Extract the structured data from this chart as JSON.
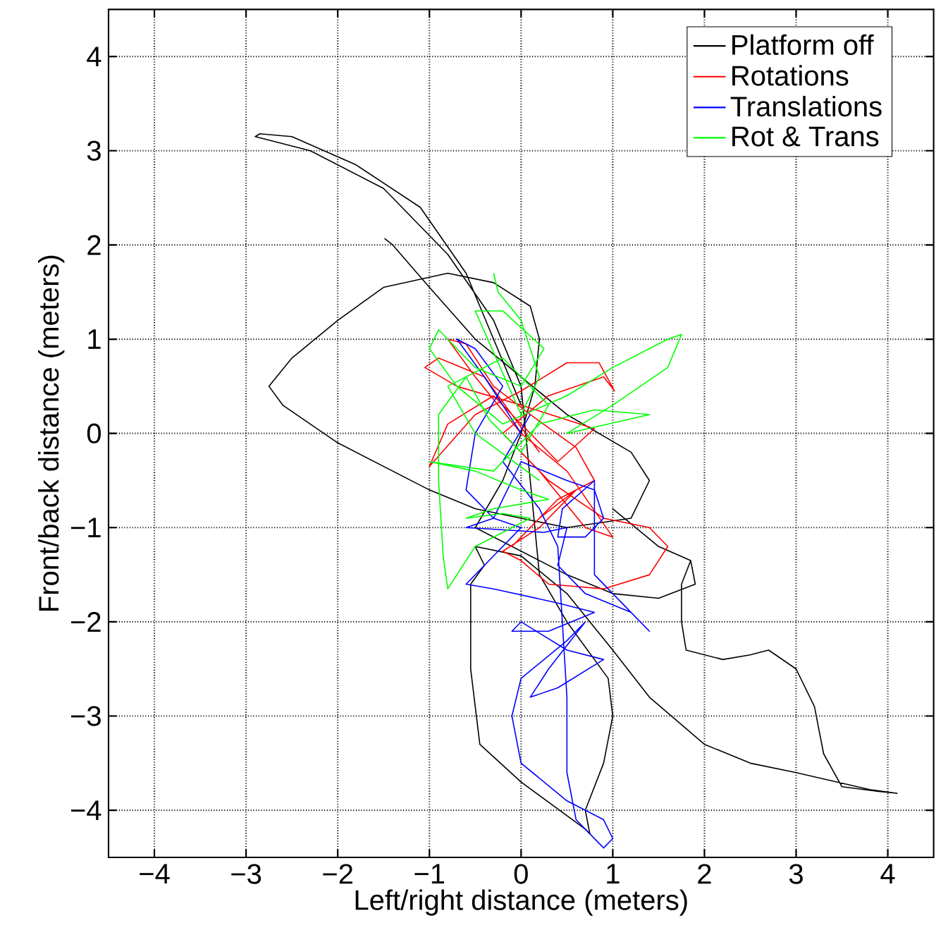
{
  "chart_data": {
    "type": "line",
    "xlabel": "Left/right distance (meters)",
    "ylabel": "Front/back distance (meters)",
    "xlim": [
      -4.5,
      4.5
    ],
    "ylim": [
      -4.5,
      4.5
    ],
    "xticks": [
      {
        "value": -4,
        "label": "−4"
      },
      {
        "value": -3,
        "label": "−3"
      },
      {
        "value": -2,
        "label": "−2"
      },
      {
        "value": -1,
        "label": "−1"
      },
      0,
      1,
      2,
      3,
      4
    ],
    "yticks": [
      {
        "value": -4,
        "label": "−4"
      },
      {
        "value": -3,
        "label": "−3"
      },
      {
        "value": -2,
        "label": "−2"
      },
      {
        "value": -1,
        "label": "−1"
      },
      0,
      1,
      2,
      3,
      4
    ],
    "grid": true,
    "legend": "top right",
    "marker": "none",
    "line_style": "solid",
    "series": [
      {
        "name": "Platform off",
        "color": "#000000",
        "x": [
          -1.49,
          -1.4,
          -1.0,
          -0.5,
          0.0,
          0.5,
          1.2,
          1.4,
          1.2,
          0.5,
          0.0,
          -0.5,
          -1.0,
          -2.0,
          -2.6,
          -2.75,
          -2.5,
          -2.0,
          -1.5,
          -0.8,
          -0.3,
          0.1,
          0.2,
          0.15,
          0.0,
          -0.2,
          -0.5,
          0.5,
          1.0,
          1.5,
          1.9,
          1.85,
          1.5,
          1.0,
          1.5,
          1.85,
          1.75,
          1.75,
          1.8,
          2.2,
          2.5,
          2.7,
          3.0,
          3.2,
          3.3,
          3.5,
          3.9,
          4.1,
          3.8,
          3.0,
          2.5,
          2.0,
          1.4,
          1.0,
          0.5,
          0.0,
          -0.5,
          -0.4,
          -0.55,
          -0.55,
          -0.45,
          0.0,
          0.7,
          0.75,
          0.7,
          0.9,
          1.0,
          0.95,
          0.5,
          0.2,
          0.0,
          -0.3,
          -0.8,
          -1.5,
          -2.3,
          -2.9,
          -2.85,
          -2.5,
          -1.8,
          -1.1,
          -0.6,
          -0.3,
          0.0
        ],
        "values": [
          2.07,
          2.0,
          1.55,
          1.0,
          0.6,
          0.2,
          -0.2,
          -0.5,
          -0.9,
          -1.0,
          -0.9,
          -0.8,
          -0.6,
          -0.1,
          0.3,
          0.5,
          0.8,
          1.2,
          1.55,
          1.7,
          1.6,
          1.35,
          1.0,
          0.5,
          0.0,
          -0.5,
          -1.0,
          -1.5,
          -1.7,
          -1.75,
          -1.6,
          -1.35,
          -1.2,
          -0.8,
          -1.2,
          -1.35,
          -1.6,
          -2.0,
          -2.3,
          -2.4,
          -2.35,
          -2.3,
          -2.5,
          -2.9,
          -3.4,
          -3.75,
          -3.8,
          -3.82,
          -3.78,
          -3.6,
          -3.5,
          -3.3,
          -2.8,
          -2.3,
          -1.7,
          -1.3,
          -1.2,
          -1.4,
          -1.6,
          -2.5,
          -3.3,
          -3.7,
          -4.2,
          -4.25,
          -4.0,
          -3.5,
          -3.0,
          -2.6,
          -2.0,
          -1.5,
          0.5,
          1.2,
          1.9,
          2.6,
          3.0,
          3.15,
          3.18,
          3.15,
          2.85,
          2.4,
          1.7,
          1.0,
          0.3
        ]
      },
      {
        "name": "Rotations",
        "color": "#ff0000",
        "x": [
          0.2,
          -0.4,
          -0.9,
          -1.05,
          -0.7,
          0.0,
          0.8,
          0.4,
          -0.3,
          -0.8,
          -1.0,
          -0.5,
          0.0,
          0.5,
          0.85,
          1.02,
          0.9,
          0.3,
          -0.2,
          0.3,
          0.9,
          1.4,
          1.6,
          1.4,
          0.9,
          0.3,
          0.0,
          -0.2,
          0.2,
          0.6,
          0.2,
          -0.1,
          0.4,
          0.8,
          0.6,
          0.1,
          -0.3,
          -0.6,
          -0.8,
          -0.5,
          0.0,
          0.5,
          1.0,
          0.7,
          0.2
        ],
        "values": [
          -0.2,
          0.6,
          0.8,
          0.7,
          0.5,
          0.3,
          0.05,
          -0.3,
          0.4,
          0.1,
          -0.35,
          0.2,
          0.45,
          0.75,
          0.75,
          0.45,
          0.6,
          0.4,
          0.0,
          -0.5,
          -0.9,
          -1.0,
          -1.2,
          -1.5,
          -1.65,
          -1.6,
          -1.35,
          -1.25,
          -1.0,
          -0.6,
          -0.9,
          -1.2,
          -0.7,
          -0.5,
          -0.15,
          0.2,
          0.5,
          0.95,
          1.0,
          0.6,
          0.0,
          -0.4,
          -1.1,
          -1.0,
          -0.4
        ]
      },
      {
        "name": "Translations",
        "color": "#0000ff",
        "x": [
          0.0,
          -0.4,
          -0.7,
          -0.5,
          -0.2,
          -0.5,
          -0.6,
          -0.3,
          0.0,
          0.5,
          0.8,
          0.9,
          0.7,
          0.4,
          0.45,
          0.8,
          0.8,
          1.2,
          1.4,
          1.2,
          0.7,
          0.4,
          0.5,
          0.25,
          -0.6,
          -0.3,
          0.0,
          -0.6,
          -0.3,
          0.4,
          0.8,
          0.3,
          -0.1,
          0.0,
          0.5,
          0.9,
          0.4,
          0.1,
          0.3,
          0.7,
          0.5,
          0.0,
          -0.1,
          0.0,
          0.5,
          0.9,
          1.0,
          0.9,
          0.6,
          0.5,
          0.5,
          0.45,
          0.4,
          0.2,
          -0.2,
          0.1
        ],
        "values": [
          0.0,
          0.6,
          1.0,
          0.9,
          0.5,
          0.0,
          -0.6,
          -0.9,
          -0.3,
          -0.5,
          -0.6,
          -0.9,
          -1.1,
          -1.1,
          -0.8,
          -0.5,
          -1.5,
          -1.9,
          -2.1,
          -1.9,
          -1.7,
          -1.4,
          -1.0,
          -1.05,
          -1.0,
          -0.9,
          -1.0,
          -1.6,
          -1.65,
          -1.8,
          -1.9,
          -2.1,
          -2.1,
          -2.0,
          -2.3,
          -2.4,
          -2.7,
          -2.8,
          -2.5,
          -2.0,
          -2.2,
          -2.6,
          -3.0,
          -3.5,
          -3.9,
          -4.1,
          -4.3,
          -4.4,
          -4.1,
          -3.6,
          -2.8,
          -2.0,
          -1.2,
          -0.8,
          -0.3,
          0.2
        ]
      },
      {
        "name": "Rot & Trans",
        "color": "#00ff00",
        "x": [
          -0.3,
          -0.25,
          0.0,
          0.2,
          0.0,
          -0.5,
          -0.2,
          0.25,
          0.0,
          -0.5,
          -0.9,
          -1.0,
          -0.7,
          -0.2,
          0.5,
          1.0,
          1.6,
          1.75,
          1.6,
          1.0,
          0.5,
          1.4,
          0.8,
          0.2,
          -0.3,
          -1.0,
          -0.5,
          0.0,
          0.3,
          -0.3,
          -0.6,
          -0.2,
          0.1,
          -0.5,
          -0.8,
          -0.85,
          -0.9,
          -0.9,
          -0.6,
          -0.35,
          0.0,
          0.3,
          -0.2,
          -0.8,
          -0.5,
          0.2
        ],
        "values": [
          1.7,
          1.5,
          1.2,
          0.6,
          0.2,
          1.3,
          1.3,
          0.9,
          0.5,
          0.7,
          1.1,
          0.9,
          0.5,
          0.1,
          0.4,
          0.7,
          1.0,
          1.05,
          0.7,
          0.3,
          0.0,
          0.2,
          0.25,
          0.1,
          -0.4,
          -0.3,
          -0.4,
          -0.6,
          -0.7,
          -0.8,
          -0.9,
          -0.85,
          -0.9,
          -1.2,
          -1.65,
          -1.3,
          -0.5,
          0.2,
          0.6,
          0.15,
          -0.2,
          0.3,
          0.8,
          0.5,
          0.0,
          -0.5
        ]
      }
    ]
  }
}
